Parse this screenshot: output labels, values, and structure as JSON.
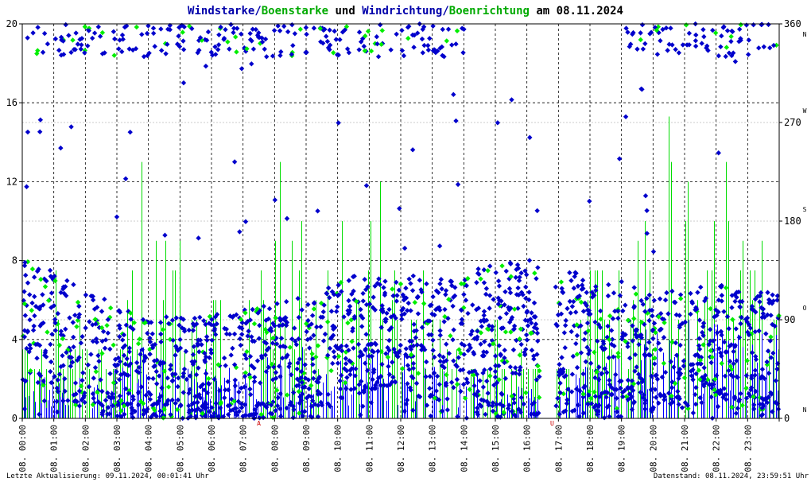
{
  "title": {
    "part1": "Windstarke/",
    "part2": "Boenstarke",
    "part3": " und ",
    "part4": "Windrichtung/",
    "part5": "Boenrichtung",
    "part6": " am 08.11.2024"
  },
  "colors": {
    "wind": "#0000ff",
    "gust": "#00dd00",
    "wind_dir": "#0000cc",
    "gust_dir": "#00ee00",
    "title_blue": "#0000aa",
    "title_green": "#00aa00"
  },
  "footer": {
    "left": "Letzte Aktualisierung: 09.11.2024, 00:01:41 Uhr",
    "right": "Datenstand: 08.11.2024, 23:59:51 Uhr"
  },
  "chart_data": {
    "type": "scatter",
    "title": "Windstarke/Boenstarke und Windrichtung/Boenrichtung am 08.11.2024",
    "x_tick_labels": [
      "08. 00:00",
      "08. 01:00",
      "08. 02:00",
      "08. 03:00",
      "08. 04:00",
      "08. 05:00",
      "08. 06:00",
      "08. 07:00",
      "08. 08:00",
      "08. 09:00",
      "08. 10:00",
      "08. 11:00",
      "08. 12:00",
      "08. 13:00",
      "08. 14:00",
      "08. 15:00",
      "08. 16:00",
      "08. 17:00",
      "08. 18:00",
      "08. 19:00",
      "08. 20:00",
      "08. 21:00",
      "08. 22:00",
      "08. 23:00"
    ],
    "xlim": [
      0,
      24
    ],
    "y_left": {
      "ylim": [
        0,
        20
      ],
      "ticks": [
        "0",
        "4",
        "8",
        "12",
        "16",
        "20"
      ]
    },
    "y_right": {
      "ylim": [
        0,
        360
      ],
      "ticks": [
        "0",
        "90",
        "180",
        "270",
        "360"
      ],
      "direction_letters": [
        "N",
        "O",
        "S",
        "W",
        "N"
      ]
    },
    "x_markers": [
      {
        "label": "A",
        "x": 7.5
      },
      {
        "label": "U",
        "x": 16.8
      }
    ],
    "grid": true,
    "series": [
      {
        "name": "Windstarke",
        "kind": "bars",
        "axis": "left"
      },
      {
        "name": "Boenstarke",
        "kind": "bars",
        "axis": "left"
      },
      {
        "name": "Windrichtung",
        "kind": "points",
        "axis": "right"
      },
      {
        "name": "Boenrichtung",
        "kind": "points",
        "axis": "right"
      }
    ],
    "gust_profile_hourly": [
      [
        0,
        3.5
      ],
      [
        0.5,
        4
      ],
      [
        1,
        5
      ],
      [
        1.5,
        5
      ],
      [
        2,
        4
      ],
      [
        2.5,
        3.5
      ],
      [
        3,
        4
      ],
      [
        3.5,
        7.5
      ],
      [
        4,
        9
      ],
      [
        4.5,
        12
      ],
      [
        5,
        7.5
      ],
      [
        5.5,
        6
      ],
      [
        6,
        6
      ],
      [
        6.5,
        7
      ],
      [
        7,
        7.5
      ],
      [
        7.5,
        8
      ],
      [
        8,
        8.5
      ],
      [
        8.5,
        9
      ],
      [
        9,
        9.5
      ],
      [
        9.5,
        7
      ],
      [
        10,
        6
      ],
      [
        10.5,
        8
      ],
      [
        11,
        9.5
      ],
      [
        11.5,
        7
      ],
      [
        12,
        6
      ],
      [
        12.5,
        5
      ],
      [
        13,
        5
      ],
      [
        13.5,
        4
      ],
      [
        14,
        4
      ],
      [
        14.5,
        3
      ],
      [
        15,
        3
      ],
      [
        15.5,
        2.5
      ],
      [
        16,
        2.5
      ],
      [
        16.5,
        1
      ],
      [
        17,
        2
      ],
      [
        17.5,
        3
      ],
      [
        18,
        7
      ],
      [
        18.5,
        8
      ],
      [
        19,
        7.5
      ],
      [
        19.5,
        9
      ],
      [
        20,
        10
      ],
      [
        20.5,
        14
      ],
      [
        21,
        12
      ],
      [
        21.5,
        11
      ],
      [
        22,
        10
      ],
      [
        22.5,
        9
      ],
      [
        23,
        9
      ],
      [
        23.5,
        8
      ],
      [
        24,
        8
      ]
    ],
    "wind_profile_hourly": [
      [
        0,
        2
      ],
      [
        1,
        2.5
      ],
      [
        2,
        2
      ],
      [
        3,
        2.5
      ],
      [
        4,
        3.5
      ],
      [
        5,
        3
      ],
      [
        6,
        2.5
      ],
      [
        7,
        3
      ],
      [
        8,
        3
      ],
      [
        9,
        3.5
      ],
      [
        10,
        3
      ],
      [
        11,
        3.5
      ],
      [
        12,
        3
      ],
      [
        13,
        2.5
      ],
      [
        14,
        2
      ],
      [
        15,
        2
      ],
      [
        16,
        1.5
      ],
      [
        17,
        1
      ],
      [
        18,
        3
      ],
      [
        19,
        3.5
      ],
      [
        20,
        4.5
      ],
      [
        21,
        5
      ],
      [
        22,
        4.5
      ],
      [
        23,
        4
      ],
      [
        24,
        4
      ]
    ],
    "dir_profile_hourly": [
      [
        0,
        90
      ],
      [
        1,
        80
      ],
      [
        2,
        60
      ],
      [
        3,
        50
      ],
      [
        4,
        40
      ],
      [
        5,
        40
      ],
      [
        6,
        40
      ],
      [
        7,
        45
      ],
      [
        8,
        50
      ],
      [
        9,
        60
      ],
      [
        10,
        70
      ],
      [
        11,
        80
      ],
      [
        12,
        80
      ],
      [
        13,
        70
      ],
      [
        14,
        80
      ],
      [
        15,
        85
      ],
      [
        16,
        90
      ],
      [
        17,
        80
      ],
      [
        18,
        80
      ],
      [
        19,
        70
      ],
      [
        20,
        60
      ],
      [
        21,
        65
      ],
      [
        22,
        70
      ],
      [
        23,
        60
      ],
      [
        24,
        60
      ]
    ]
  }
}
